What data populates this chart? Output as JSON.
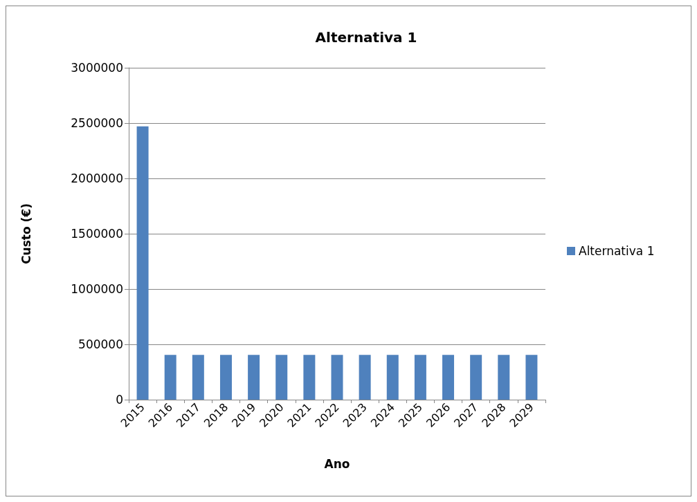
{
  "chart_data": {
    "type": "bar",
    "title": "Alternativa 1",
    "xlabel": "Ano",
    "ylabel": "Custo (€)",
    "categories": [
      "2015",
      "2016",
      "2017",
      "2018",
      "2019",
      "2020",
      "2021",
      "2022",
      "2023",
      "2024",
      "2025",
      "2026",
      "2027",
      "2028",
      "2029"
    ],
    "series": [
      {
        "name": "Alternativa 1",
        "color": "#4f81bd",
        "values": [
          2470000,
          405000,
          405000,
          405000,
          405000,
          405000,
          405000,
          405000,
          405000,
          405000,
          405000,
          405000,
          405000,
          405000,
          405000
        ]
      }
    ],
    "ylim": [
      0,
      3000000
    ],
    "yticks": [
      0,
      500000,
      1000000,
      1500000,
      2000000,
      2500000,
      3000000
    ],
    "grid": "y",
    "legend": "right"
  }
}
